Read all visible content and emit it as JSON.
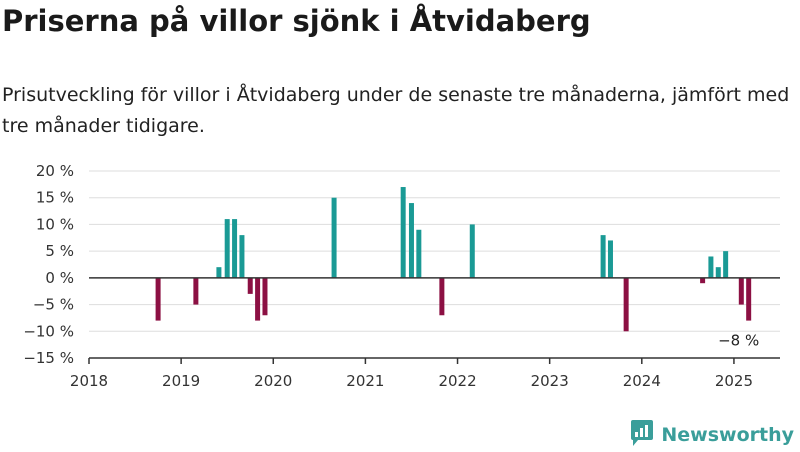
{
  "header": {
    "title": "Priserna på villor sjönk i Åtvidaberg",
    "subtitle": "Prisutveckling för villor i Åtvidaberg under de senaste tre månaderna, jämfört med tre månader tidigare."
  },
  "brand": {
    "name": "Newsworthy",
    "icon": "newsworthy-logo-icon",
    "color": "#3a9e9a"
  },
  "colors": {
    "positive": "#1a9a95",
    "negative": "#8c1043",
    "grid": "#dddddd",
    "axis": "#333333"
  },
  "chart_data": {
    "type": "bar",
    "title": "",
    "xlabel": "",
    "ylabel": "",
    "grid": true,
    "legend": "none",
    "ylim": [
      -15,
      20
    ],
    "xlim": [
      2018.0,
      2025.5
    ],
    "y_ticks": [
      20,
      15,
      10,
      5,
      0,
      -5,
      -10,
      -15
    ],
    "y_tick_labels": [
      "20 %",
      "15 %",
      "10 %",
      "5 %",
      "0 %",
      "−5 %",
      "−10 %",
      "−15 %"
    ],
    "x_ticks": [
      2018,
      2019,
      2020,
      2021,
      2022,
      2023,
      2024,
      2025
    ],
    "x_tick_labels": [
      "2018",
      "2019",
      "2020",
      "2021",
      "2022",
      "2023",
      "2024",
      "2025"
    ],
    "series": [
      {
        "x": [
          2018.75,
          2019.16,
          2019.41,
          2019.5,
          2019.58,
          2019.66,
          2019.75,
          2019.83,
          2019.91,
          2020.66,
          2021.41,
          2021.5,
          2021.58,
          2021.83,
          2022.16,
          2023.58,
          2023.66,
          2023.83,
          2024.66,
          2024.75,
          2024.83,
          2024.91,
          2025.08,
          2025.16
        ],
        "values": [
          -8,
          -5,
          2,
          11,
          11,
          8,
          -3,
          -8,
          -7,
          15,
          17,
          14,
          9,
          -7,
          10,
          8,
          7,
          -10,
          -1,
          4,
          2,
          5,
          -5,
          -8
        ]
      }
    ],
    "annotations": [
      {
        "text": "−8 %"
      }
    ]
  }
}
